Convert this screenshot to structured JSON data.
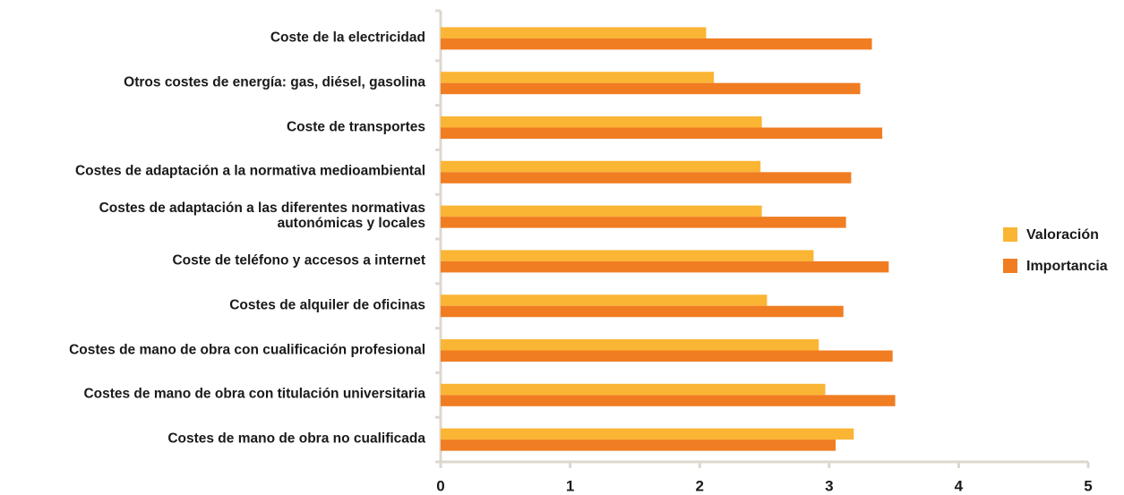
{
  "chart_data": {
    "type": "hbar",
    "categories": [
      "Coste de la electricidad",
      "Otros costes de energía: gas, diésel, gasolina",
      "Coste de transportes",
      "Costes de adaptación a la normativa medioambiental",
      "Costes de adaptación a las diferentes normativas\nautonómicas y locales",
      "Coste de teléfono y accesos a internet",
      "Costes de alquiler de oficinas",
      "Costes de mano de obra con cualificación profesional",
      "Costes de mano de obra con titulación universitaria",
      "Costes de mano de obra no cualificada"
    ],
    "series": [
      {
        "name": "Valoración",
        "color": "#fbb534",
        "values": [
          2.05,
          2.11,
          2.48,
          2.47,
          2.48,
          2.88,
          2.52,
          2.92,
          2.97,
          3.19
        ]
      },
      {
        "name": "Importancia",
        "color": "#f07d22",
        "values": [
          3.33,
          3.24,
          3.41,
          3.17,
          3.13,
          3.46,
          3.11,
          3.49,
          3.51,
          3.05
        ]
      }
    ],
    "xlim": [
      0,
      5
    ],
    "xticks": [
      0,
      1,
      2,
      3,
      4,
      5
    ],
    "legend": "right"
  }
}
